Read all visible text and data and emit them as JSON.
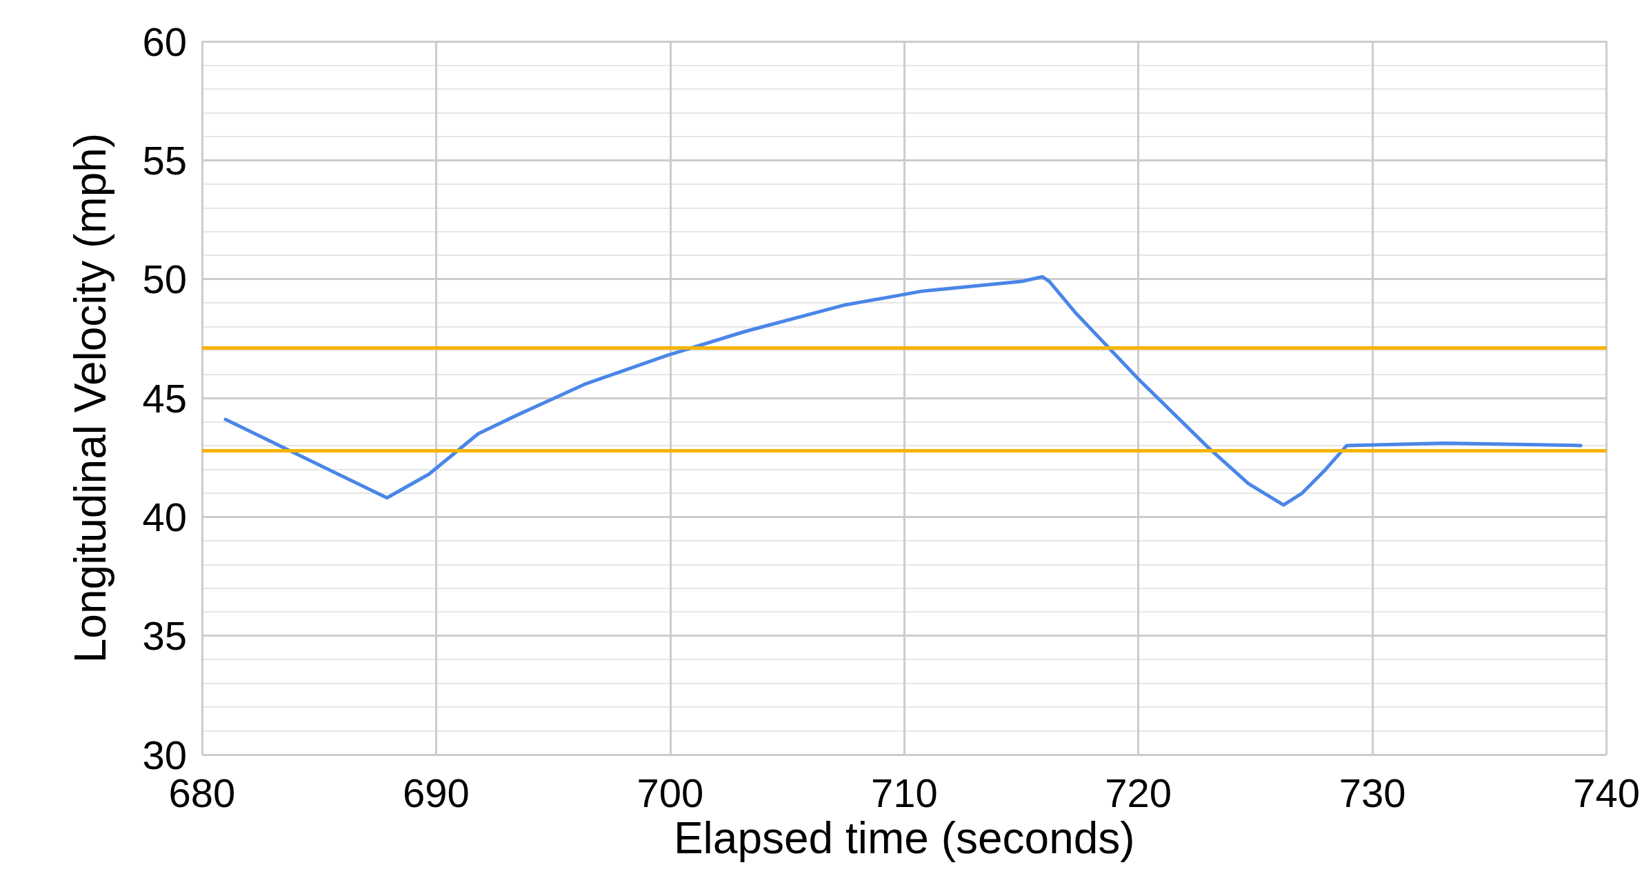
{
  "chart_data": {
    "type": "line",
    "xlabel": "Elapsed time (seconds)",
    "ylabel": "Longitudinal Velocity (mph)",
    "x": [
      681.0,
      687.9,
      689.7,
      691.8,
      693.5,
      696.4,
      699.9,
      703.2,
      707.4,
      710.8,
      715.0,
      715.9,
      716.2,
      717.3,
      720.0,
      723.0,
      724.7,
      726.2,
      727.0,
      728.0,
      728.9,
      733.1,
      738.9
    ],
    "series": [
      {
        "color": "#4a86e8",
        "values": [
          44.1,
          40.8,
          41.8,
          43.5,
          44.3,
          45.6,
          46.8,
          47.8,
          48.9,
          49.5,
          49.9,
          50.1,
          49.9,
          48.6,
          45.8,
          42.9,
          41.4,
          40.5,
          41.0,
          42.0,
          43.0,
          43.1,
          43.0
        ]
      }
    ],
    "ref_lines": [
      {
        "axis": "y",
        "value": 47.1,
        "color": "#f4b400"
      },
      {
        "axis": "y",
        "value": 42.8,
        "color": "#f4b400"
      }
    ],
    "xlim": [
      680,
      740
    ],
    "xticks": [
      680,
      690,
      700,
      710,
      720,
      730,
      740
    ],
    "ylim": [
      30,
      60
    ],
    "yticks": [
      30,
      35,
      40,
      45,
      50,
      55,
      60
    ],
    "grid": true,
    "marker": "none",
    "line_style": "solid"
  }
}
